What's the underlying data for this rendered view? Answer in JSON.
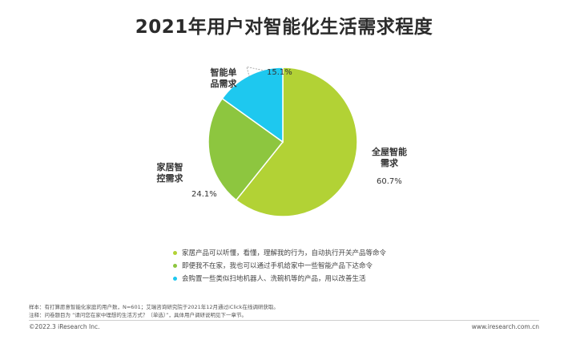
{
  "chart_data": {
    "type": "pie",
    "title": "2021年用户对智能化生活需求程度",
    "slices": [
      {
        "category": "全屋智能需求",
        "value": 60.7,
        "label": "60.7%",
        "color": "#b2d235"
      },
      {
        "category": "家居智控需求",
        "value": 24.1,
        "label": "24.1%",
        "color": "#8dc63f"
      },
      {
        "category": "智能单品需求",
        "value": 15.1,
        "label": "15.1%",
        "color": "#1ec8ef"
      }
    ],
    "legend": [
      {
        "text": "家居产品可以听懂，看懂，理解我的行为，自动执行开关产品等命令",
        "color": "#b2d235"
      },
      {
        "text": "即便我不在家，我也可以通过手机给家中一些智能产品下达命令",
        "color": "#8dc63f"
      },
      {
        "text": "会购置一些类似扫地机器人、洗碗机等的产品，用以改善生活",
        "color": "#1ec8ef"
      }
    ],
    "legend_position": "bottom"
  },
  "notes": {
    "sample": "样本：有打算愿意智能化家庭的用户数，N=601；艾瑞咨询研究院于2021年12月通过iClick在线调研获取。",
    "remark": "注释：问卷题目为 “请问您在家中理想的生活方式？（单选）”，具体用户调研说明见下一章节。"
  },
  "footer": {
    "copyright": "©2022.3 iResearch Inc.",
    "website": "www.iresearch.com.cn"
  }
}
